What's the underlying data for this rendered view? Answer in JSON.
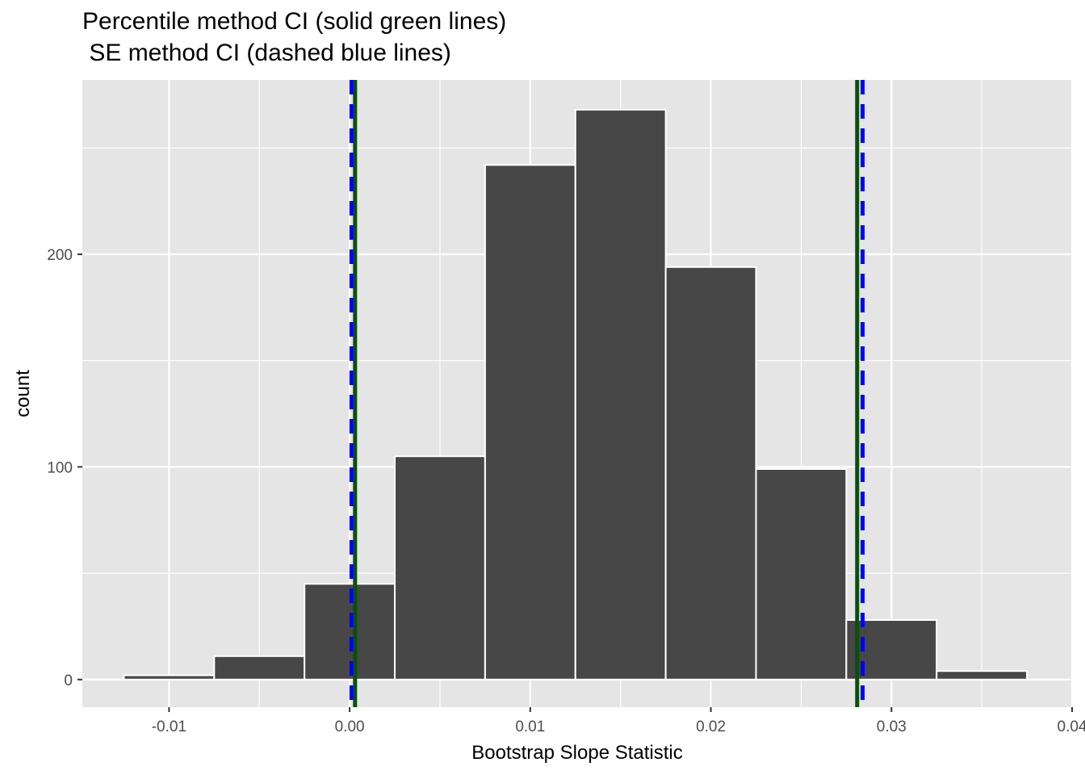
{
  "chart_data": {
    "type": "bar",
    "title_lines": [
      "Percentile method CI (solid green lines)",
      " SE method CI (dashed blue lines)"
    ],
    "xlabel": "Bootstrap Slope Statistic",
    "ylabel": "count",
    "xlim": [
      -0.0148,
      0.04
    ],
    "ylim": [
      -13,
      282
    ],
    "grid": true,
    "x_ticks": [
      {
        "value": -0.01,
        "label": "-0.01"
      },
      {
        "value": 0.0,
        "label": "0.00"
      },
      {
        "value": 0.01,
        "label": "0.01"
      },
      {
        "value": 0.02,
        "label": "0.02"
      },
      {
        "value": 0.03,
        "label": "0.03"
      },
      {
        "value": 0.04,
        "label": "0.04"
      }
    ],
    "y_ticks": [
      {
        "value": 0,
        "label": "0"
      },
      {
        "value": 100,
        "label": "100"
      },
      {
        "value": 200,
        "label": "200"
      }
    ],
    "bin_width": 0.005,
    "bins": [
      {
        "center": -0.01,
        "count": 2
      },
      {
        "center": -0.005,
        "count": 11
      },
      {
        "center": 0.0,
        "count": 45
      },
      {
        "center": 0.005,
        "count": 105
      },
      {
        "center": 0.01,
        "count": 242
      },
      {
        "center": 0.015,
        "count": 268
      },
      {
        "center": 0.02,
        "count": 194
      },
      {
        "center": 0.025,
        "count": 99
      },
      {
        "center": 0.03,
        "count": 28
      },
      {
        "center": 0.035,
        "count": 4
      }
    ],
    "ci_lines": [
      {
        "method": "SE",
        "style": "dashed",
        "color": "#0000ff",
        "values": [
          0.0001,
          0.0284
        ]
      },
      {
        "method": "Percentile",
        "style": "solid",
        "color": "#0b4f0b",
        "values": [
          0.0003,
          0.0281
        ]
      }
    ],
    "colors": {
      "panel_background": "#e5e5e5",
      "grid": "#ffffff",
      "bar_fill": "#474747",
      "bar_outline": "#ffffff"
    }
  }
}
